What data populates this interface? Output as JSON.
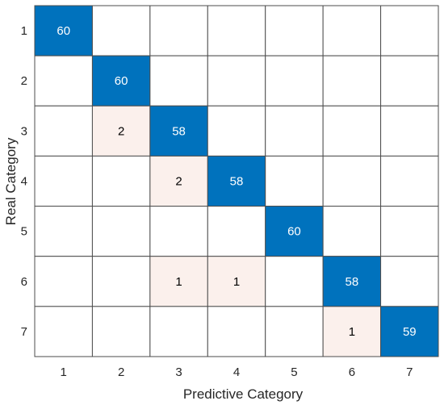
{
  "chart_data": {
    "type": "heatmap",
    "title": "",
    "xlabel": "Predictive Category",
    "ylabel": "Real Category",
    "x_categories": [
      "1",
      "2",
      "3",
      "4",
      "5",
      "6",
      "7"
    ],
    "y_categories": [
      "1",
      "2",
      "3",
      "4",
      "5",
      "6",
      "7"
    ],
    "values": [
      [
        60,
        0,
        0,
        0,
        0,
        0,
        0
      ],
      [
        0,
        60,
        0,
        0,
        0,
        0,
        0
      ],
      [
        0,
        2,
        58,
        0,
        0,
        0,
        0
      ],
      [
        0,
        0,
        2,
        58,
        0,
        0,
        0
      ],
      [
        0,
        0,
        0,
        0,
        60,
        0,
        0
      ],
      [
        0,
        0,
        1,
        1,
        0,
        58,
        0
      ],
      [
        0,
        0,
        0,
        0,
        0,
        1,
        59
      ]
    ],
    "hide_zero_values": true,
    "colors": {
      "diagonal": "#0072BD",
      "off_diagonal": "#FBF0EC",
      "empty": "#FFFFFF",
      "grid": "#4D4D4D",
      "diagonal_text": "#FFFFFF",
      "off_diagonal_text": "#000000"
    }
  }
}
